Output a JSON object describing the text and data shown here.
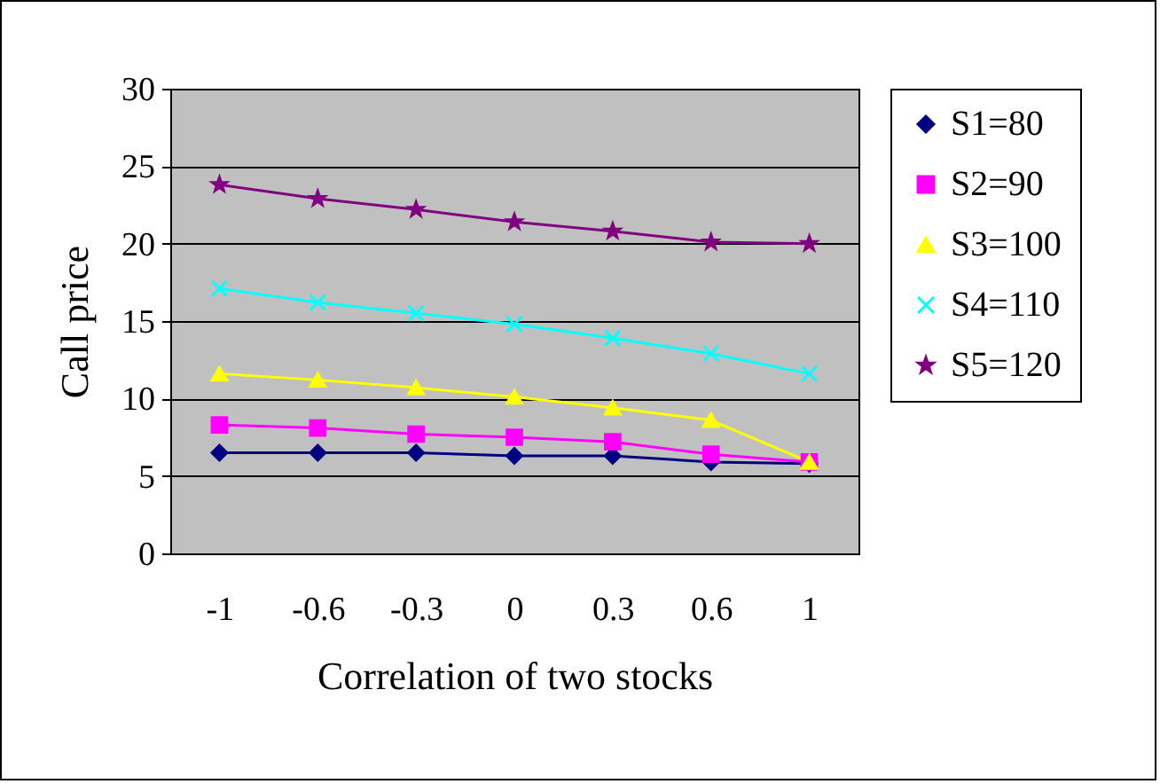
{
  "chart_data": {
    "type": "line",
    "xlabel": "Correlation of two stocks",
    "ylabel": "Call price",
    "categories": [
      "-1",
      "-0.6",
      "-0.3",
      "0",
      "0.3",
      "0.6",
      "1"
    ],
    "ylim": [
      0,
      30
    ],
    "yticks": [
      0,
      5,
      10,
      15,
      20,
      25,
      30
    ],
    "grid": "y",
    "legend": "right",
    "line_style": "solid",
    "series": [
      {
        "name": "S1=80",
        "color": "#000080",
        "marker": "diamond",
        "values": [
          6.5,
          6.5,
          6.5,
          6.3,
          6.3,
          5.9,
          5.8
        ]
      },
      {
        "name": "S2=90",
        "color": "#ff00ff",
        "marker": "square",
        "values": [
          8.3,
          8.1,
          7.7,
          7.5,
          7.2,
          6.4,
          5.9
        ]
      },
      {
        "name": "S3=100",
        "color": "#ffff00",
        "marker": "triangle",
        "values": [
          11.6,
          11.2,
          10.7,
          10.1,
          9.4,
          8.6,
          5.9
        ]
      },
      {
        "name": "S4=110",
        "color": "#00ffff",
        "marker": "cross",
        "values": [
          17.1,
          16.2,
          15.5,
          14.8,
          13.9,
          12.9,
          11.6
        ]
      },
      {
        "name": "S5=120",
        "color": "#800080",
        "marker": "star",
        "values": [
          23.8,
          22.9,
          22.2,
          21.4,
          20.8,
          20.1,
          20.0
        ]
      }
    ]
  }
}
